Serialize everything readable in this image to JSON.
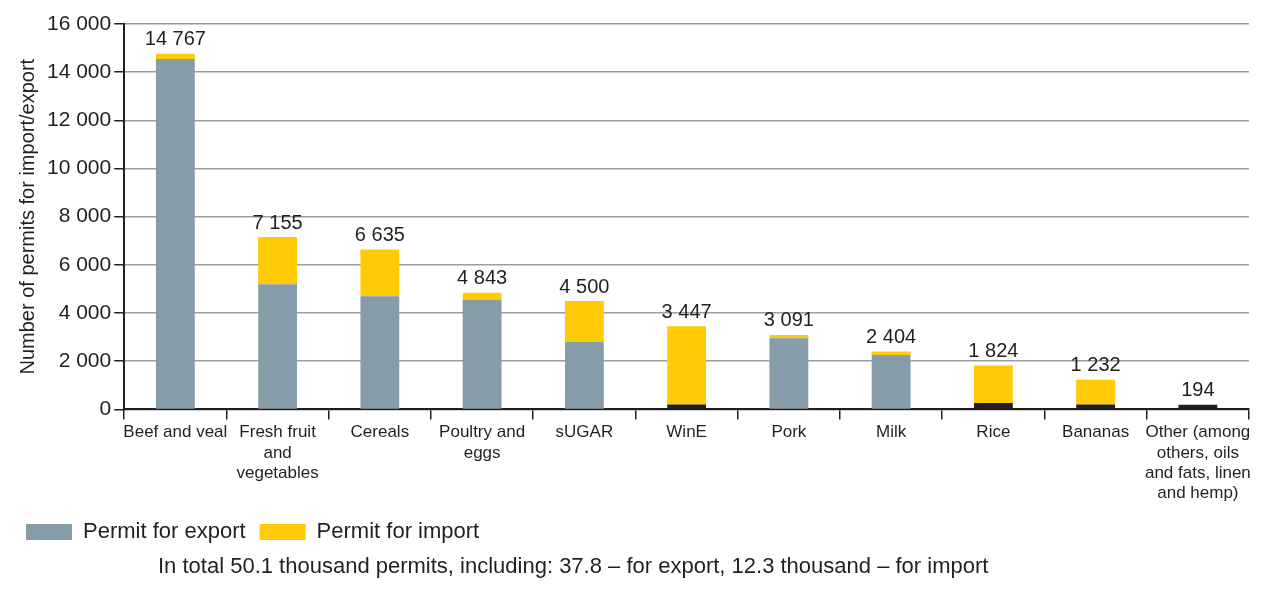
{
  "chart_data": {
    "type": "bar",
    "stacked": true,
    "ylabel": "Number of permits for import/export",
    "categories": [
      "Beef and veal",
      "Fresh fruit and vegetables",
      "Cereals",
      "Poultry and eggs",
      "sUGAR",
      "WinE",
      "Pork",
      "Milk",
      "Rice",
      "Bananas",
      "Other (among others, oils and fats, linen and hemp)"
    ],
    "series": [
      {
        "color": "#231f20",
        "values": [
          null,
          null,
          null,
          null,
          null,
          200,
          null,
          null,
          270,
          200,
          194
        ]
      },
      {
        "name": "Permit for export",
        "color": "#869ca8",
        "values": [
          14550,
          5200,
          4700,
          4550,
          2800,
          null,
          2950,
          2260,
          null,
          null,
          null
        ]
      },
      {
        "name": "Permit for import",
        "color": "#ffcb05",
        "values": [
          217,
          1955,
          1935,
          293,
          1700,
          3247,
          141,
          144,
          1554,
          1032,
          null
        ]
      }
    ],
    "totals": [
      "14 767",
      "7 155",
      "6 635",
      "4 843",
      "4 500",
      "3 447",
      "3 091",
      "2 404",
      "1 824",
      "1 232",
      "194"
    ],
    "ylim": [
      0,
      16000
    ],
    "yticks": [
      {
        "value": 0,
        "label": "0"
      },
      {
        "value": 2000,
        "label": "2 000"
      },
      {
        "value": 4000,
        "label": "4 000"
      },
      {
        "value": 6000,
        "label": "6 000"
      },
      {
        "value": 8000,
        "label": "8 000"
      },
      {
        "value": 10000,
        "label": "10 000"
      },
      {
        "value": 12000,
        "label": "12 000"
      },
      {
        "value": 14000,
        "label": "14 000"
      },
      {
        "value": 16000,
        "label": "16 000"
      }
    ],
    "grid": "y",
    "legend": "bottom left",
    "annotations": [
      "In total 50.1 thousand permits, including: 37.8 – for export, 12.3 thousand – for import"
    ]
  }
}
